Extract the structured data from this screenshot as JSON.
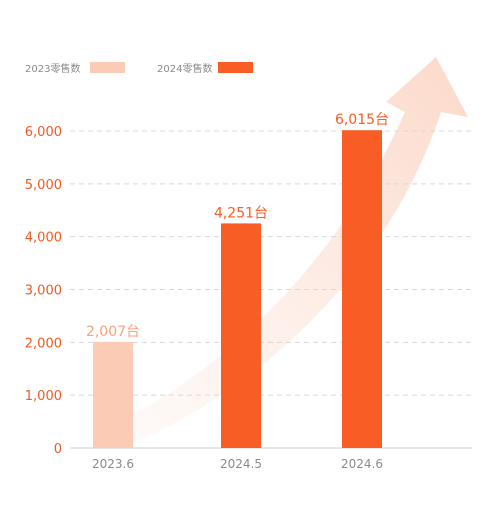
{
  "chart_data": {
    "type": "bar",
    "categories": [
      "2023.6",
      "2024.5",
      "2024.6"
    ],
    "values": [
      2007,
      4251,
      6015
    ],
    "data_labels": [
      "2,007台",
      "4,251台",
      "6,015台"
    ],
    "series_of_category": [
      0,
      1,
      1
    ],
    "series": [
      {
        "name": "2023零售数",
        "color": "#fbcbb6"
      },
      {
        "name": "2024零售数",
        "color": "#f75d24"
      }
    ],
    "y_ticks": [
      "0",
      "1,000",
      "2,000",
      "3,000",
      "4,000",
      "5,000",
      "6,000"
    ],
    "ylim": [
      0,
      6000
    ],
    "grid": true,
    "legend_position": "top-left",
    "decoration": "upward-trend-arrow"
  },
  "colors": {
    "accent": "#f75d24",
    "light": "#fbcbb6",
    "label_light": "#f8a27c",
    "gridline": "#d8d8d8",
    "axis_text": "#8a8a8a",
    "tick_text": "#f05a22"
  }
}
